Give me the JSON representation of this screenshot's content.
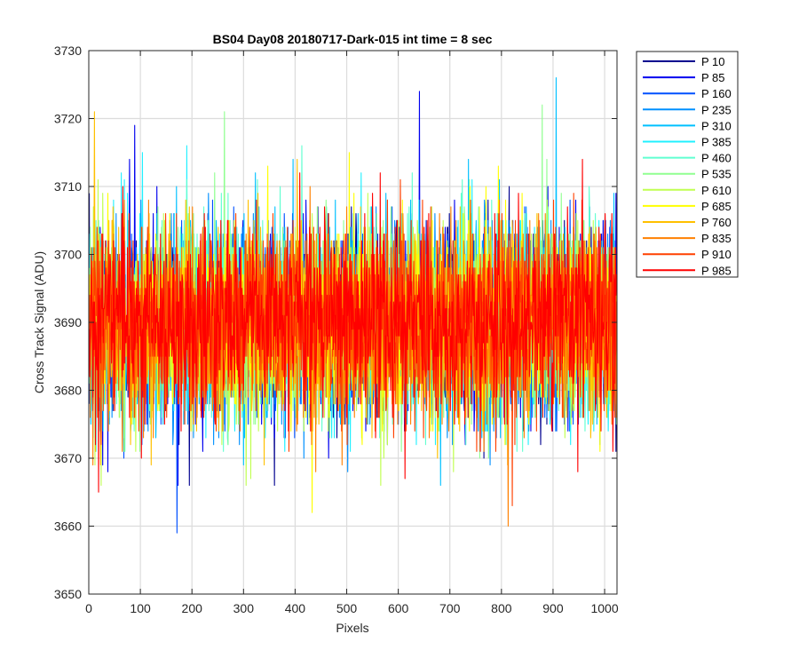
{
  "chart_data": {
    "type": "line",
    "title": "BS04 Day08 20180717-Dark-015 int time = 8 sec",
    "xlabel": "Pixels",
    "ylabel": "Cross Track Signal (ADU)",
    "xlim": [
      0,
      1024
    ],
    "ylim": [
      3650,
      3730
    ],
    "xticks": [
      0,
      100,
      200,
      300,
      400,
      500,
      600,
      700,
      800,
      900,
      1000
    ],
    "yticks": [
      3650,
      3660,
      3670,
      3680,
      3690,
      3700,
      3710,
      3720,
      3730
    ],
    "grid": true,
    "legend_position": "outside-right",
    "n_points": 1024,
    "noise_model": {
      "mean": 3690,
      "stdev": 7,
      "min_typical": 3660,
      "max_typical": 3726
    },
    "series": [
      {
        "name": "P 10",
        "color": "#00008f"
      },
      {
        "name": "P 85",
        "color": "#0000ef"
      },
      {
        "name": "P 160",
        "color": "#0050ff"
      },
      {
        "name": "P 235",
        "color": "#0090ff"
      },
      {
        "name": "P 310",
        "color": "#00c0ff"
      },
      {
        "name": "P 385",
        "color": "#20f0ff"
      },
      {
        "name": "P 460",
        "color": "#60ffd0"
      },
      {
        "name": "P 535",
        "color": "#90ff90"
      },
      {
        "name": "P 610",
        "color": "#c0ff50"
      },
      {
        "name": "P 685",
        "color": "#ffff00"
      },
      {
        "name": "P 760",
        "color": "#ffc000"
      },
      {
        "name": "P 835",
        "color": "#ff8000"
      },
      {
        "name": "P 910",
        "color": "#ff4000"
      },
      {
        "name": "P 985",
        "color": "#ff0000"
      }
    ],
    "notable_values": [
      {
        "series": "P 160",
        "x": 170,
        "y": 3659
      },
      {
        "series": "P 85",
        "x": 88,
        "y": 3719
      },
      {
        "series": "P 85",
        "x": 640,
        "y": 3724
      },
      {
        "series": "P 310",
        "x": 905,
        "y": 3726
      },
      {
        "series": "P 760",
        "x": 10,
        "y": 3721
      },
      {
        "series": "P 535",
        "x": 262,
        "y": 3721
      },
      {
        "series": "P 535",
        "x": 878,
        "y": 3722
      },
      {
        "series": "P 835",
        "x": 812,
        "y": 3660
      },
      {
        "series": "P 910",
        "x": 820,
        "y": 3663
      },
      {
        "series": "P 685",
        "x": 432,
        "y": 3662
      },
      {
        "series": "P 985",
        "x": 18,
        "y": 3665
      }
    ]
  }
}
